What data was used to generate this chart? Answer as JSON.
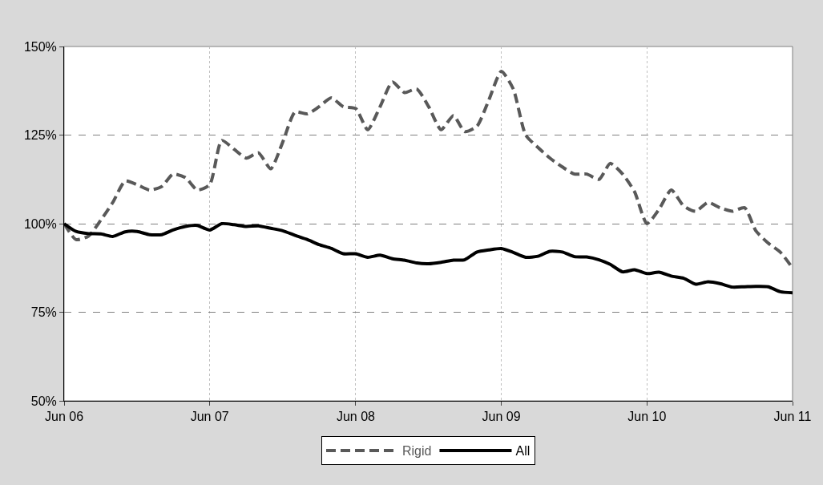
{
  "chart_data": {
    "type": "line",
    "x": [
      "2006-06",
      "2006-07",
      "2006-08",
      "2006-09",
      "2006-10",
      "2006-11",
      "2006-12",
      "2007-01",
      "2007-02",
      "2007-03",
      "2007-04",
      "2007-05",
      "2007-06",
      "2007-07",
      "2007-08",
      "2007-09",
      "2007-10",
      "2007-11",
      "2007-12",
      "2008-01",
      "2008-02",
      "2008-03",
      "2008-04",
      "2008-05",
      "2008-06",
      "2008-07",
      "2008-08",
      "2008-09",
      "2008-10",
      "2008-11",
      "2008-12",
      "2009-01",
      "2009-02",
      "2009-03",
      "2009-04",
      "2009-05",
      "2009-06",
      "2009-07",
      "2009-08",
      "2009-09",
      "2009-10",
      "2009-11",
      "2009-12",
      "2010-01",
      "2010-02",
      "2010-03",
      "2010-04",
      "2010-05",
      "2010-06",
      "2010-07",
      "2010-08",
      "2010-09",
      "2010-10",
      "2010-11",
      "2010-12",
      "2011-01",
      "2011-02",
      "2011-03",
      "2011-04",
      "2011-05",
      "2011-06"
    ],
    "series": [
      {
        "name": "Rigid",
        "color": "#595959",
        "line_style": "dashed",
        "values": [
          100,
          95.5,
          96.5,
          101,
          106,
          112,
          111,
          109.5,
          110.5,
          114,
          113,
          109.5,
          111,
          123.5,
          121,
          118.5,
          120,
          115.5,
          123,
          131.5,
          131,
          133,
          135.5,
          133,
          132.5,
          126.5,
          133,
          140,
          137,
          138,
          133,
          126.5,
          130.5,
          126,
          127.5,
          135,
          143,
          138,
          125,
          121.5,
          118.5,
          116,
          114,
          114,
          112.5,
          117,
          114,
          109,
          100,
          104,
          109.5,
          105,
          103.5,
          106,
          104.5,
          103.5,
          104.5,
          98,
          94.5,
          92,
          87.5
        ]
      },
      {
        "name": "All",
        "color": "#000000",
        "line_style": "solid",
        "values": [
          100,
          97.8,
          97.2,
          97.1,
          96.4,
          97.7,
          97.8,
          96.9,
          96.9,
          98.2,
          99.2,
          99.5,
          98.2,
          100,
          99.7,
          99.2,
          99.4,
          98.7,
          98,
          96.7,
          95.5,
          94.1,
          93,
          91.5,
          91.5,
          90.5,
          91.1,
          90.1,
          89.7,
          88.9,
          88.7,
          89.1,
          89.7,
          89.8,
          92,
          92.6,
          93,
          91.9,
          90.5,
          90.8,
          92.2,
          92,
          90.7,
          90.6,
          89.8,
          88.5,
          86.4,
          87,
          85.9,
          86.3,
          85.2,
          84.6,
          82.9,
          83.6,
          83.1,
          82.1,
          82.2,
          82.3,
          82.2,
          80.8,
          80.5
        ]
      }
    ],
    "xlim": [
      "2006-06",
      "2011-06"
    ],
    "xticks": [
      {
        "value": "2006-06",
        "label": "Jun 06"
      },
      {
        "value": "2007-06",
        "label": "Jun 07"
      },
      {
        "value": "2008-06",
        "label": "Jun 08"
      },
      {
        "value": "2009-06",
        "label": "Jun 09"
      },
      {
        "value": "2010-06",
        "label": "Jun 10"
      },
      {
        "value": "2011-06",
        "label": "Jun 11"
      }
    ],
    "ylim": [
      50,
      150
    ],
    "yticks": [
      {
        "value": 50,
        "label": "50%"
      },
      {
        "value": 75,
        "label": "75%"
      },
      {
        "value": 100,
        "label": "100%"
      },
      {
        "value": 125,
        "label": "125%"
      },
      {
        "value": 150,
        "label": "150%"
      }
    ],
    "grid": true,
    "legend": "bottom",
    "marker": "none"
  }
}
